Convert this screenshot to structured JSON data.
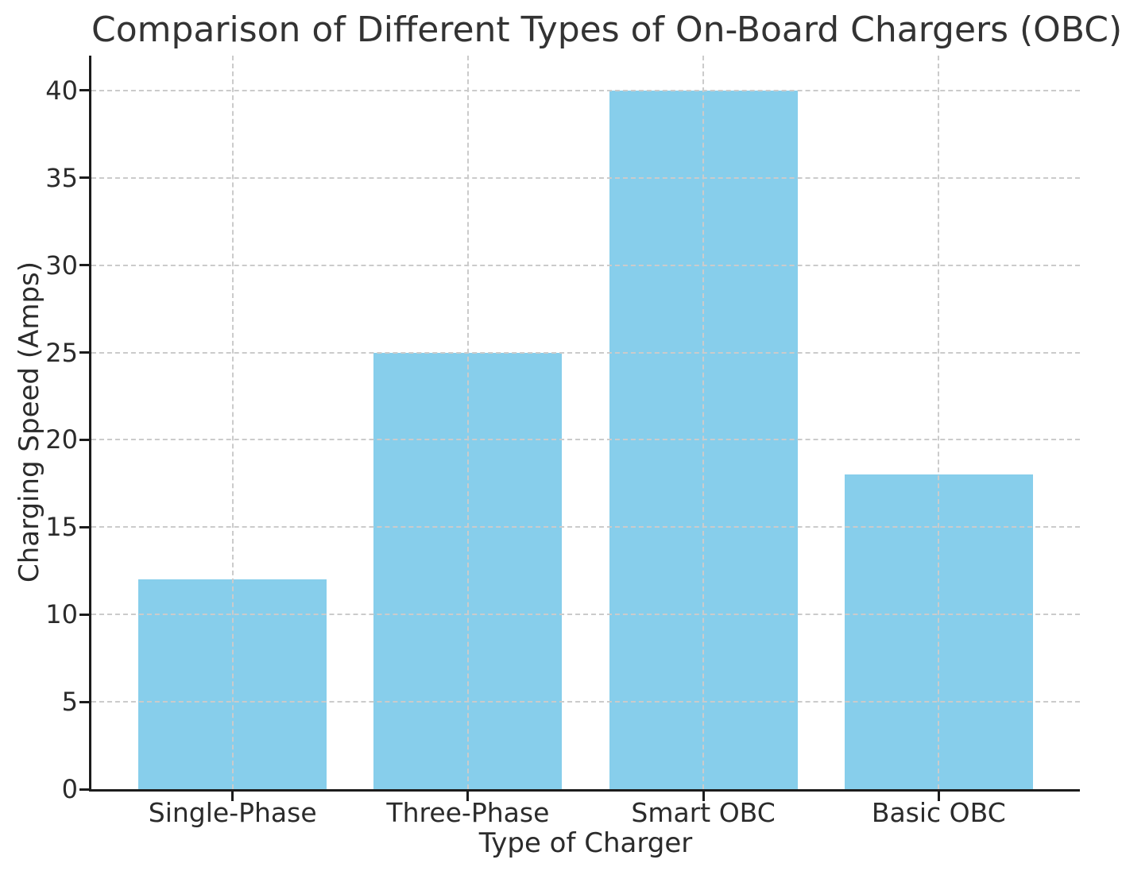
{
  "chart_data": {
    "type": "bar",
    "title": "Comparison of Different Types of On-Board Chargers (OBC)",
    "xlabel": "Type of Charger",
    "ylabel": "Charging Speed (Amps)",
    "categories": [
      "Single-Phase",
      "Three-Phase",
      "Smart OBC",
      "Basic OBC"
    ],
    "values": [
      12,
      25,
      40,
      18
    ],
    "yticks": [
      0,
      5,
      10,
      15,
      20,
      25,
      30,
      35,
      40
    ],
    "ylim": [
      0,
      42
    ],
    "grid": true,
    "grid_style": "dashed",
    "grid_over_bars": true,
    "legend": false,
    "colors": {
      "bar": "#87CEEB",
      "grid": "#cbcbcb",
      "spine": "#1c1c1c",
      "tick_text": "#2b2b2b",
      "title_text": "#333333",
      "background": "#ffffff"
    }
  }
}
